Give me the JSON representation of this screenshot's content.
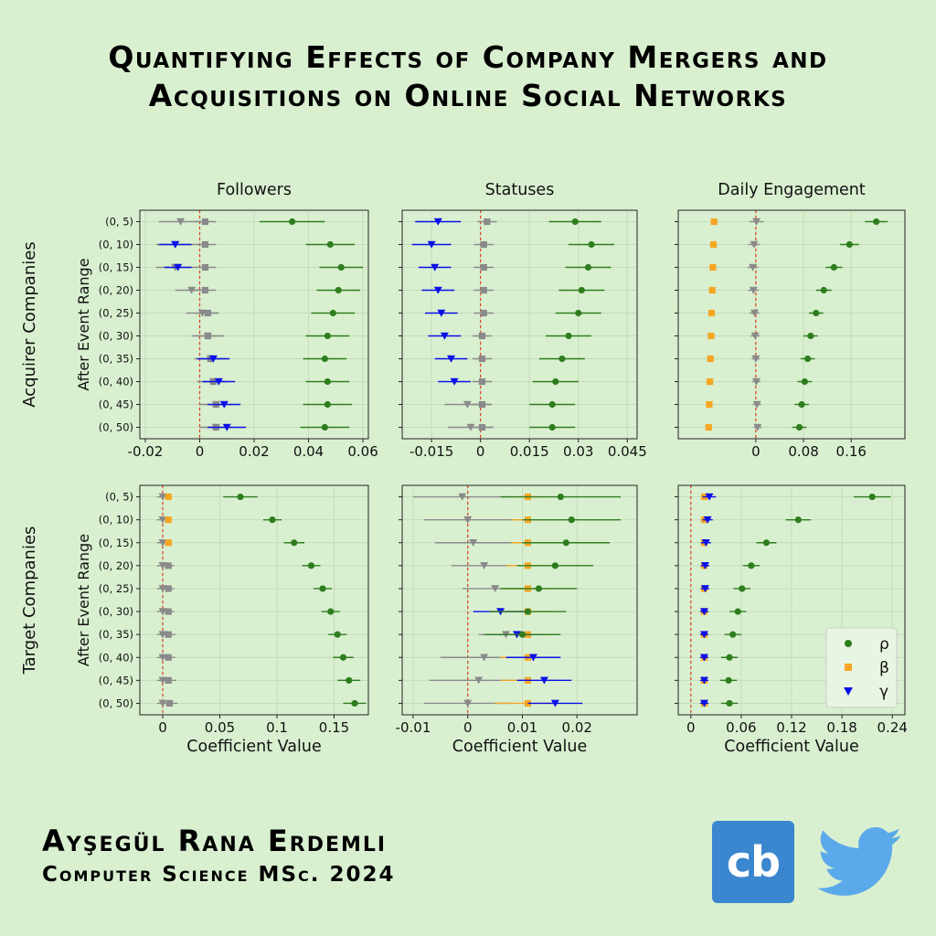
{
  "title": {
    "line1": "Quantifying Effects of Company Mergers and",
    "line2": "Acquisitions on Online Social Networks"
  },
  "author": {
    "name": "Ayşegül Rana Erdemli",
    "program": "Computer Science MSc. 2024"
  },
  "logos": {
    "cb": "cb",
    "cb_icon": "cb-logo-icon",
    "twitter_icon": "twitter-bird-icon"
  },
  "colors": {
    "background": "#d9f0d0",
    "rho": "#2e7d1e",
    "beta": "#f5a623",
    "gamma": "#0a10e6",
    "gray": "#8a8a8a",
    "zero_line": "#e0452a",
    "grid": "#c5dcbc"
  },
  "chart_data": {
    "type": "scatter",
    "subtype": "coefficient-plot-with-error-bars",
    "columns": [
      "Followers",
      "Statuses",
      "Daily Engagement"
    ],
    "rows": [
      "Acquirer Companies",
      "Target Companies"
    ],
    "ylabel": "After Event Range",
    "xlabel": "Coefficient Value",
    "categories": [
      "(0, 5)",
      "(0, 10)",
      "(0, 15)",
      "(0, 20)",
      "(0, 25)",
      "(0, 30)",
      "(0, 35)",
      "(0, 40)",
      "(0, 45)",
      "(0, 50)"
    ],
    "legend": {
      "placement": "lower-right of bottom-right panel",
      "entries": [
        "ρ",
        "β",
        "γ"
      ]
    },
    "grid": true,
    "panels": [
      {
        "row": 0,
        "col": 0,
        "xlim": [
          -0.022,
          0.062
        ],
        "xticks": [
          -0.02,
          0,
          0.02,
          0.04,
          0.06
        ],
        "xticklabels": [
          "-0.02",
          "0",
          "0.02",
          "0.04",
          "0.06"
        ],
        "series": [
          {
            "key": "gray_tri",
            "name": "",
            "marker": "tri_down",
            "color": "gray",
            "values": [
              -0.007,
              -0.009,
              -0.009,
              -0.003,
              0.001,
              0.003,
              0.004,
              0.005,
              0.006,
              0.006
            ],
            "err": [
              0.008,
              0.007,
              0.007,
              0.006,
              0.006,
              0.006,
              0.006,
              0.006,
              0.006,
              0.006
            ]
          },
          {
            "key": "gray_sq",
            "name": "",
            "marker": "square",
            "color": "gray",
            "values": [
              0.002,
              0.002,
              0.002,
              0.002,
              0.003,
              0.003,
              0.004,
              0.005,
              0.006,
              0.006
            ],
            "err": [
              0.004,
              0.004,
              0.004,
              0.004,
              0.004,
              0.004,
              0.004,
              0.004,
              0.004,
              0.004
            ]
          },
          {
            "key": "gamma",
            "name": "γ",
            "marker": "tri_down",
            "color": "gamma",
            "values": null,
            "values_list": [
              null,
              -0.009,
              -0.008,
              null,
              null,
              null,
              0.005,
              0.007,
              0.009,
              0.01
            ],
            "err": [
              0,
              0.006,
              0.005,
              0,
              0,
              0,
              0.006,
              0.006,
              0.006,
              0.007
            ]
          },
          {
            "key": "rho",
            "name": "ρ",
            "marker": "circle",
            "color": "rho",
            "values": [
              0.034,
              0.048,
              0.052,
              0.051,
              0.049,
              0.047,
              0.046,
              0.047,
              0.047,
              0.046
            ],
            "err": [
              0.012,
              0.009,
              0.008,
              0.008,
              0.008,
              0.008,
              0.008,
              0.008,
              0.009,
              0.009
            ]
          }
        ]
      },
      {
        "row": 0,
        "col": 1,
        "xlim": [
          -0.024,
          0.048
        ],
        "xticks": [
          -0.015,
          0,
          0.015,
          0.03,
          0.045
        ],
        "xticklabels": [
          "-0.015",
          "0",
          "0.015",
          "0.03",
          "0.045"
        ],
        "series": [
          {
            "key": "gray_tri",
            "name": "",
            "marker": "tri_down",
            "color": "gray",
            "values": [
              null,
              null,
              null,
              null,
              null,
              null,
              null,
              null,
              -0.004,
              -0.003
            ],
            "err": [
              0,
              0,
              0,
              0,
              0,
              0,
              0,
              0,
              0.007,
              0.007
            ]
          },
          {
            "key": "gray_sq",
            "name": "",
            "marker": "square",
            "color": "gray",
            "values": [
              0.002,
              0.001,
              0.001,
              0.001,
              0.001,
              0.0005,
              0.0005,
              0.0005,
              0.0005,
              0.0005
            ],
            "err": [
              0.003,
              0.003,
              0.003,
              0.003,
              0.003,
              0.003,
              0.003,
              0.003,
              0.003,
              0.003
            ]
          },
          {
            "key": "gamma",
            "name": "γ",
            "marker": "tri_down",
            "color": "gamma",
            "values": [
              -0.013,
              -0.015,
              -0.014,
              -0.013,
              -0.012,
              -0.011,
              -0.009,
              -0.008,
              null,
              null
            ],
            "err": [
              0.007,
              0.006,
              0.005,
              0.005,
              0.005,
              0.005,
              0.005,
              0.005,
              0,
              0
            ]
          },
          {
            "key": "rho",
            "name": "ρ",
            "marker": "circle",
            "color": "rho",
            "values": [
              0.029,
              0.034,
              0.033,
              0.031,
              0.03,
              0.027,
              0.025,
              0.023,
              0.022,
              0.022
            ],
            "err": [
              0.008,
              0.007,
              0.007,
              0.007,
              0.007,
              0.007,
              0.007,
              0.007,
              0.007,
              0.007
            ]
          }
        ]
      },
      {
        "row": 0,
        "col": 2,
        "xlim": [
          -0.13,
          0.25
        ],
        "xticks": [
          0,
          0.08,
          0.16
        ],
        "xticklabels": [
          "0",
          "0.08",
          "0.16"
        ],
        "series": [
          {
            "key": "beta",
            "name": "β",
            "marker": "square",
            "color": "beta",
            "values": [
              -0.07,
              -0.071,
              -0.072,
              -0.073,
              -0.074,
              -0.075,
              -0.076,
              -0.077,
              -0.078,
              -0.079
            ],
            "err": [
              0.004,
              0.004,
              0.004,
              0.004,
              0.004,
              0.004,
              0.004,
              0.004,
              0.004,
              0.004
            ]
          },
          {
            "key": "gray_tri",
            "name": "",
            "marker": "tri_down",
            "color": "gray",
            "values": [
              0.001,
              -0.003,
              -0.005,
              -0.004,
              -0.002,
              -0.001,
              0,
              0.001,
              0.002,
              0.003
            ],
            "err": [
              0.012,
              0.01,
              0.009,
              0.009,
              0.008,
              0.008,
              0.007,
              0.007,
              0.007,
              0.007
            ]
          },
          {
            "key": "rho",
            "name": "ρ",
            "marker": "circle",
            "color": "rho",
            "values": [
              0.202,
              0.157,
              0.131,
              0.114,
              0.101,
              0.092,
              0.087,
              0.082,
              0.077,
              0.073
            ],
            "err": [
              0.019,
              0.016,
              0.014,
              0.013,
              0.012,
              0.012,
              0.012,
              0.012,
              0.012,
              0.012
            ]
          }
        ]
      },
      {
        "row": 1,
        "col": 0,
        "xlim": [
          -0.02,
          0.18
        ],
        "xticks": [
          0,
          0.05,
          0.1,
          0.15
        ],
        "xticklabels": [
          "0",
          "0.05",
          "0.1",
          "0.15"
        ],
        "series": [
          {
            "key": "gray_tri",
            "name": "",
            "marker": "tri_down",
            "color": "gray",
            "values": [
              0,
              0,
              0,
              0,
              0,
              0,
              0,
              0,
              0,
              0
            ],
            "err": [
              0.005,
              0.005,
              0.005,
              0.005,
              0.005,
              0.005,
              0.005,
              0.005,
              0.005,
              0.005
            ]
          },
          {
            "key": "beta",
            "name": "β",
            "marker": "square",
            "color": "beta",
            "values": [
              0.005,
              0.005,
              0.005,
              null,
              null,
              null,
              null,
              null,
              null,
              null
            ],
            "err": [
              0.003,
              0.003,
              0.003,
              0,
              0,
              0,
              0,
              0,
              0,
              0
            ]
          },
          {
            "key": "gray_sq",
            "name": "",
            "marker": "square",
            "color": "gray",
            "values": [
              null,
              null,
              null,
              0.005,
              0.005,
              0.005,
              0.005,
              0.005,
              0.005,
              0.006
            ],
            "err": [
              0,
              0,
              0,
              0.005,
              0.005,
              0.005,
              0.006,
              0.006,
              0.007,
              0.007
            ]
          },
          {
            "key": "rho",
            "name": "ρ",
            "marker": "circle",
            "color": "rho",
            "values": [
              0.068,
              0.096,
              0.115,
              0.13,
              0.14,
              0.147,
              0.153,
              0.158,
              0.163,
              0.168
            ],
            "err": [
              0.015,
              0.008,
              0.009,
              0.008,
              0.008,
              0.008,
              0.008,
              0.009,
              0.01,
              0.01
            ]
          }
        ]
      },
      {
        "row": 1,
        "col": 1,
        "xlim": [
          -0.012,
          0.031
        ],
        "xticks": [
          -0.01,
          0,
          0.01,
          0.02
        ],
        "xticklabels": [
          "-0.01",
          "0",
          "0.01",
          "0.02"
        ],
        "series": [
          {
            "key": "gray_tri",
            "name": "",
            "marker": "tri_down",
            "color": "gray",
            "values": [
              -0.001,
              0,
              0.001,
              0.003,
              0.005,
              null,
              0.007,
              0.003,
              0.002,
              0
            ],
            "err": [
              0.009,
              0.008,
              0.007,
              0.006,
              0.006,
              0,
              0.005,
              0.008,
              0.009,
              0.008
            ]
          },
          {
            "key": "beta",
            "name": "β",
            "marker": "square",
            "color": "beta",
            "values": [
              0.011,
              0.011,
              0.011,
              0.011,
              0.011,
              0.011,
              0.011,
              0.011,
              0.011,
              0.011
            ],
            "err": [
              0.003,
              0.003,
              0.003,
              0.004,
              0.004,
              0.004,
              0.004,
              0.005,
              0.005,
              0.006
            ]
          },
          {
            "key": "gamma",
            "name": "γ",
            "marker": "tri_down",
            "color": "gamma",
            "values": [
              null,
              null,
              null,
              null,
              null,
              0.006,
              0.009,
              0.012,
              0.014,
              0.016
            ],
            "err": [
              0,
              0,
              0,
              0,
              0,
              0.005,
              0.005,
              0.005,
              0.005,
              0.005
            ]
          },
          {
            "key": "rho",
            "name": "ρ",
            "marker": "circle",
            "color": "rho",
            "values": [
              0.017,
              0.019,
              0.018,
              0.016,
              0.013,
              0.011,
              0.01,
              null,
              null,
              null
            ],
            "err": [
              0.011,
              0.009,
              0.008,
              0.007,
              0.007,
              0.007,
              0.007,
              0,
              0,
              0
            ]
          }
        ]
      },
      {
        "row": 1,
        "col": 2,
        "xlim": [
          -0.015,
          0.255
        ],
        "xticks": [
          0,
          0.06,
          0.12,
          0.18,
          0.24
        ],
        "xticklabels": [
          "0",
          "0.06",
          "0.12",
          "0.18",
          "0.24"
        ],
        "series": [
          {
            "key": "beta",
            "name": "β",
            "marker": "square",
            "color": "beta",
            "values": [
              0.016,
              0.016,
              0.016,
              0.016,
              0.016,
              0.016,
              0.016,
              0.016,
              0.016,
              0.016
            ],
            "err": [
              0.004,
              0.004,
              0.004,
              0.004,
              0.004,
              0.004,
              0.004,
              0.004,
              0.004,
              0.004
            ]
          },
          {
            "key": "gamma",
            "name": "γ",
            "marker": "tri_down",
            "color": "gamma",
            "values": [
              0.022,
              0.02,
              0.018,
              0.017,
              0.017,
              0.016,
              0.016,
              0.016,
              0.016,
              0.016
            ],
            "err": [
              0.008,
              0.006,
              0.006,
              0.005,
              0.005,
              0.005,
              0.005,
              0.005,
              0.005,
              0.005
            ]
          },
          {
            "key": "rho",
            "name": "ρ",
            "marker": "circle",
            "color": "rho",
            "values": [
              0.216,
              0.128,
              0.09,
              0.072,
              0.061,
              0.056,
              0.05,
              0.046,
              0.045,
              0.046
            ],
            "err": [
              0.022,
              0.015,
              0.012,
              0.01,
              0.01,
              0.01,
              0.01,
              0.01,
              0.01,
              0.01
            ]
          }
        ]
      }
    ]
  }
}
